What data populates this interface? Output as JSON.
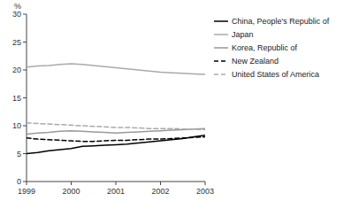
{
  "chart_data": {
    "type": "line",
    "ylabel": "%",
    "x": [
      1999.0,
      1999.25,
      1999.5,
      1999.75,
      2000.0,
      2000.25,
      2000.5,
      2000.75,
      2001.0,
      2001.25,
      2001.5,
      2001.75,
      2002.0,
      2002.25,
      2002.5,
      2002.75,
      2003.0
    ],
    "series": [
      {
        "name": "China, People's Republic of",
        "color": "#000000",
        "line_style": "solid",
        "values": [
          5.0,
          5.2,
          5.5,
          5.7,
          5.9,
          6.3,
          6.4,
          6.5,
          6.6,
          6.7,
          6.9,
          7.1,
          7.3,
          7.5,
          7.7,
          8.0,
          8.3
        ]
      },
      {
        "name": "Japan",
        "color": "#aaaaaa",
        "line_style": "solid",
        "values": [
          20.5,
          20.7,
          20.8,
          21.0,
          21.1,
          21.0,
          20.8,
          20.6,
          20.4,
          20.2,
          20.0,
          19.8,
          19.6,
          19.5,
          19.4,
          19.3,
          19.2
        ]
      },
      {
        "name": "Korea, Republic of",
        "color": "#999999",
        "line_style": "solid",
        "values": [
          8.5,
          8.7,
          8.8,
          9.0,
          9.1,
          9.0,
          8.9,
          8.8,
          8.7,
          8.8,
          8.9,
          9.0,
          9.1,
          9.2,
          9.3,
          9.4,
          9.5
        ]
      },
      {
        "name": "New Zealand",
        "color": "#000000",
        "line_style": "dashed",
        "values": [
          7.8,
          7.6,
          7.5,
          7.4,
          7.3,
          7.2,
          7.2,
          7.3,
          7.4,
          7.4,
          7.5,
          7.6,
          7.6,
          7.7,
          7.8,
          7.9,
          8.0
        ]
      },
      {
        "name": "United States of America",
        "color": "#aaaaaa",
        "line_style": "dashed",
        "values": [
          10.5,
          10.4,
          10.3,
          10.2,
          10.1,
          10.0,
          9.9,
          9.8,
          9.7,
          9.7,
          9.6,
          9.5,
          9.5,
          9.5,
          9.4,
          9.4,
          9.3
        ]
      }
    ],
    "xlim": [
      1999,
      2003
    ],
    "xticks": [
      1999,
      2000,
      2001,
      2002,
      2003
    ],
    "ylim": [
      0,
      30
    ],
    "yticks": [
      0,
      5,
      10,
      15,
      20,
      25,
      30
    ],
    "grid": false,
    "legend": "right"
  }
}
